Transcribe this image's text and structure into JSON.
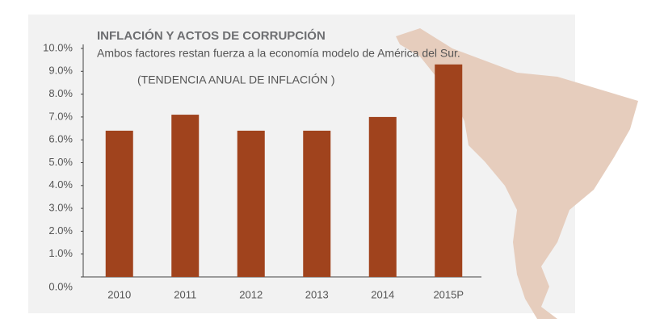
{
  "chart_data": {
    "type": "bar",
    "title": "INFLACIÓN Y  ACTOS DE CORRUPCIÓN",
    "subtitle": "Ambos factores restan fuerza a la economía modelo de América del Sur.",
    "annotation": "(TENDENCIA ANUAL DE INFLACIÓN )",
    "categories": [
      "2010",
      "2011",
      "2012",
      "2013",
      "2014",
      "2015P"
    ],
    "values": [
      6.4,
      7.1,
      6.4,
      6.4,
      7.0,
      9.3
    ],
    "color": "#a0431d",
    "ylim": [
      0,
      10
    ],
    "yticks": [
      {
        "value": 0,
        "label": "0.0%"
      },
      {
        "value": 1,
        "label": "1.0%"
      },
      {
        "value": 2,
        "label": "2.0%"
      },
      {
        "value": 3,
        "label": "3.0%"
      },
      {
        "value": 4,
        "label": "4.0%"
      },
      {
        "value": 5,
        "label": "5.0%"
      },
      {
        "value": 6,
        "label": "6.0%"
      },
      {
        "value": 7,
        "label": "7.0%"
      },
      {
        "value": 8,
        "label": "8.0%"
      },
      {
        "value": 9,
        "label": "9.0%"
      },
      {
        "value": 10,
        "label": "10.0%"
      }
    ],
    "grid": false
  }
}
